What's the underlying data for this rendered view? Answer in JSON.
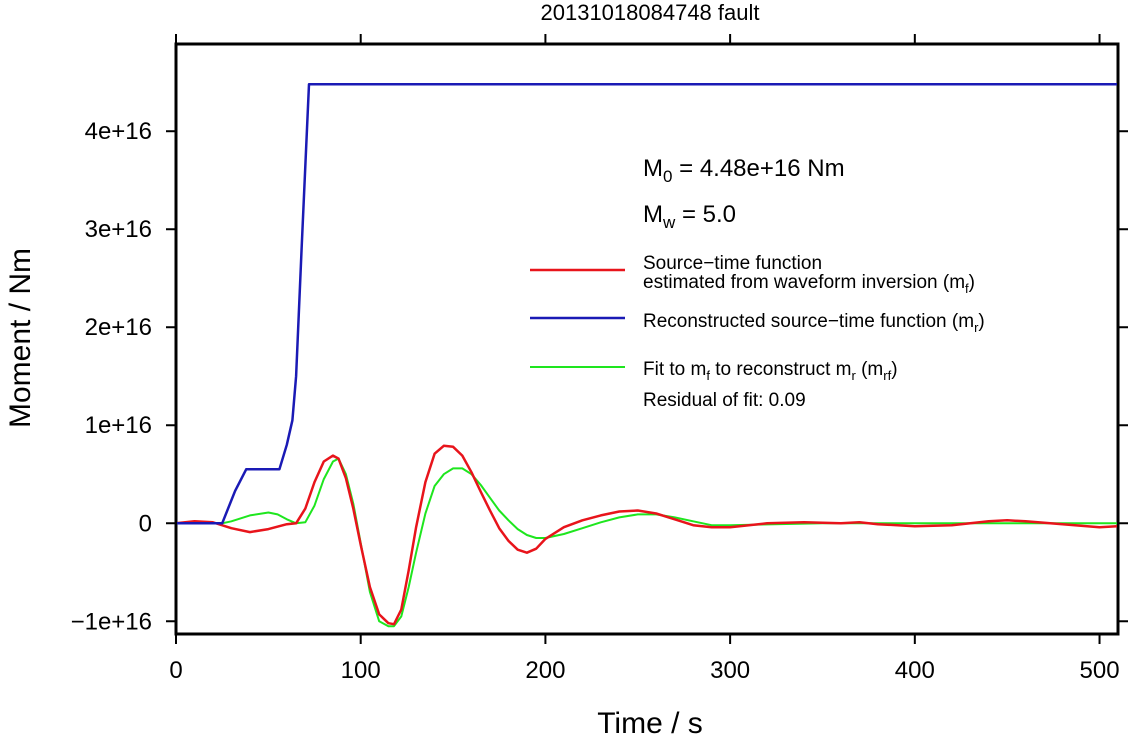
{
  "chart_data": {
    "type": "line",
    "title": "20131018084748 fault",
    "xlabel": "Time / s",
    "ylabel": "Moment / Nm",
    "xlim": [
      0,
      510
    ],
    "ylim": [
      -11300000000000000,
      48900000000000000
    ],
    "grid": false,
    "legend_position": "right",
    "x_ticks": [
      0,
      100,
      200,
      300,
      400,
      500
    ],
    "x_tick_labels": [
      "0",
      "100",
      "200",
      "300",
      "400",
      "500"
    ],
    "y_ticks": [
      -10000000000000000,
      0,
      10000000000000000,
      20000000000000000,
      30000000000000000,
      40000000000000000
    ],
    "y_tick_labels": [
      "−1e+16",
      "0",
      "1e+16",
      "2e+16",
      "3e+16",
      "4e+16"
    ],
    "annotations": {
      "m0": {
        "symbol": "M",
        "sub": "0",
        "text": " = 4.48e+16 Nm"
      },
      "mw": {
        "symbol": "M",
        "sub": "w",
        "text": " = 5.0"
      },
      "residual": "Residual of fit: 0.09"
    },
    "series": [
      {
        "legend_line1": "Source−time function",
        "legend_line2": "estimated from waveform inversion (m",
        "legend_sub": "f",
        "legend_tail": ")",
        "color": "#e8141b",
        "x": [
          0,
          10,
          20,
          30,
          40,
          50,
          60,
          65,
          70,
          75,
          80,
          85,
          88,
          92,
          96,
          100,
          105,
          110,
          115,
          118,
          122,
          126,
          130,
          135,
          140,
          145,
          150,
          155,
          160,
          165,
          170,
          175,
          180,
          185,
          190,
          195,
          200,
          210,
          220,
          230,
          240,
          250,
          260,
          270,
          280,
          290,
          300,
          320,
          340,
          360,
          370,
          380,
          400,
          420,
          440,
          450,
          460,
          480,
          500,
          510
        ],
        "y": [
          0,
          200000000000000.0,
          100000000000000.0,
          -500000000000000.0,
          -900000000000000.0,
          -600000000000000.0,
          -100000000000000.0,
          0,
          1500000000000000.0,
          4200000000000000.0,
          6300000000000000.0,
          6900000000000000.0,
          6600000000000000.0,
          4600000000000000.0,
          1500000000000000.0,
          -2200000000000000.0,
          -6500000000000000.0,
          -9300000000000000.0,
          -1.02e+16,
          -1.03e+16,
          -8800000000000000.0,
          -4800000000000000.0,
          -400000000000000.0,
          4200000000000000.0,
          7100000000000000.0,
          7900000000000000.0,
          7800000000000000.0,
          6900000000000000.0,
          5200000000000000.0,
          3200000000000000.0,
          1300000000000000.0,
          -500000000000000.0,
          -1800000000000000.0,
          -2700000000000000.0,
          -3000000000000000.0,
          -2600000000000000.0,
          -1600000000000000.0,
          -400000000000000.0,
          300000000000000.0,
          800000000000000.0,
          1200000000000000.0,
          1300000000000000.0,
          1000000000000000.0,
          400000000000000.0,
          -200000000000000.0,
          -400000000000000.0,
          -400000000000000.0,
          0,
          100000000000000.0,
          0,
          100000000000000.0,
          -100000000000000.0,
          -300000000000000.0,
          -200000000000000.0,
          200000000000000.0,
          300000000000000.0,
          200000000000000.0,
          -100000000000000.0,
          -400000000000000.0,
          -300000000000000.0
        ]
      },
      {
        "legend_text": "Reconstructed source−time function (m",
        "legend_sub": "r",
        "legend_tail": ")",
        "color": "#1a1ab5",
        "x": [
          0,
          10,
          20,
          25,
          32,
          38,
          40,
          50,
          56,
          60,
          63,
          65,
          68,
          72,
          100,
          200,
          300,
          400,
          510
        ],
        "y": [
          0,
          0,
          0,
          0,
          3300000000000000.0,
          5500000000000000.0,
          5500000000000000.0,
          5500000000000000.0,
          5500000000000000.0,
          8000000000000000.0,
          1.05e+16,
          1.5e+16,
          2.8e+16,
          4.48e+16,
          4.48e+16,
          4.48e+16,
          4.48e+16,
          4.48e+16,
          4.48e+16
        ]
      },
      {
        "legend_text": "Fit to m",
        "legend_sub": "f",
        "legend_mid": " to reconstruct m",
        "legend_sub2": "r",
        "legend_mid2": " (m",
        "legend_sub3": "rf",
        "legend_tail": ")",
        "color": "#1ee61e",
        "x": [
          0,
          20,
          25,
          30,
          40,
          50,
          55,
          60,
          65,
          70,
          75,
          80,
          85,
          88,
          92,
          96,
          100,
          105,
          110,
          115,
          118,
          122,
          126,
          130,
          135,
          140,
          145,
          150,
          155,
          160,
          165,
          170,
          175,
          180,
          185,
          190,
          195,
          200,
          210,
          220,
          230,
          240,
          250,
          260,
          270,
          280,
          290,
          300,
          350,
          400,
          450,
          500,
          510
        ],
        "y": [
          0,
          0,
          0,
          200000000000000.0,
          800000000000000.0,
          1100000000000000.0,
          900000000000000.0,
          400000000000000.0,
          0,
          100000000000000.0,
          1800000000000000.0,
          4500000000000000.0,
          6300000000000000.0,
          6600000000000000.0,
          5000000000000000.0,
          2000000000000000.0,
          -2000000000000000.0,
          -7000000000000000.0,
          -1e+16,
          -1.05e+16,
          -1.05e+16,
          -9500000000000000.0,
          -6500000000000000.0,
          -3000000000000000.0,
          1000000000000000.0,
          3800000000000000.0,
          5000000000000000.0,
          5600000000000000.0,
          5600000000000000.0,
          5000000000000000.0,
          3900000000000000.0,
          2600000000000000.0,
          1300000000000000.0,
          300000000000000.0,
          -600000000000000.0,
          -1200000000000000.0,
          -1500000000000000.0,
          -1500000000000000.0,
          -1100000000000000.0,
          -500000000000000.0,
          100000000000000.0,
          600000000000000.0,
          900000000000000.0,
          900000000000000.0,
          600000000000000.0,
          200000000000000.0,
          -200000000000000.0,
          -200000000000000.0,
          0,
          0,
          0,
          0,
          0
        ]
      }
    ]
  }
}
